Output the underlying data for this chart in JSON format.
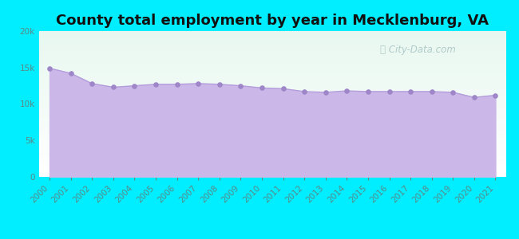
{
  "title": "County total employment by year in Mecklenburg, VA",
  "years": [
    2000,
    2001,
    2002,
    2003,
    2004,
    2005,
    2006,
    2007,
    2008,
    2009,
    2010,
    2011,
    2012,
    2013,
    2014,
    2015,
    2016,
    2017,
    2018,
    2019,
    2020,
    2021
  ],
  "values": [
    14900,
    14200,
    12800,
    12300,
    12500,
    12700,
    12700,
    12800,
    12700,
    12500,
    12200,
    12100,
    11700,
    11600,
    11800,
    11700,
    11700,
    11700,
    11700,
    11600,
    10900,
    11200
  ],
  "ylim": [
    0,
    20000
  ],
  "yticks": [
    0,
    5000,
    10000,
    15000,
    20000
  ],
  "ytick_labels": [
    "0",
    "5k",
    "10k",
    "15k",
    "20k"
  ],
  "bg_outer": "#00eeff",
  "bg_chart_top": "#e8f8f0",
  "bg_chart_bottom": "#ffffff",
  "fill_color": "#cbb8e8",
  "line_color": "#b39ddb",
  "marker_color": "#9e86c8",
  "title_fontsize": 13,
  "title_color": "#111111",
  "watermark_text": "City-Data.com",
  "watermark_color": "#a8c4c4",
  "tick_label_color": "#5a8888",
  "axis_label_fontsize": 7.5
}
